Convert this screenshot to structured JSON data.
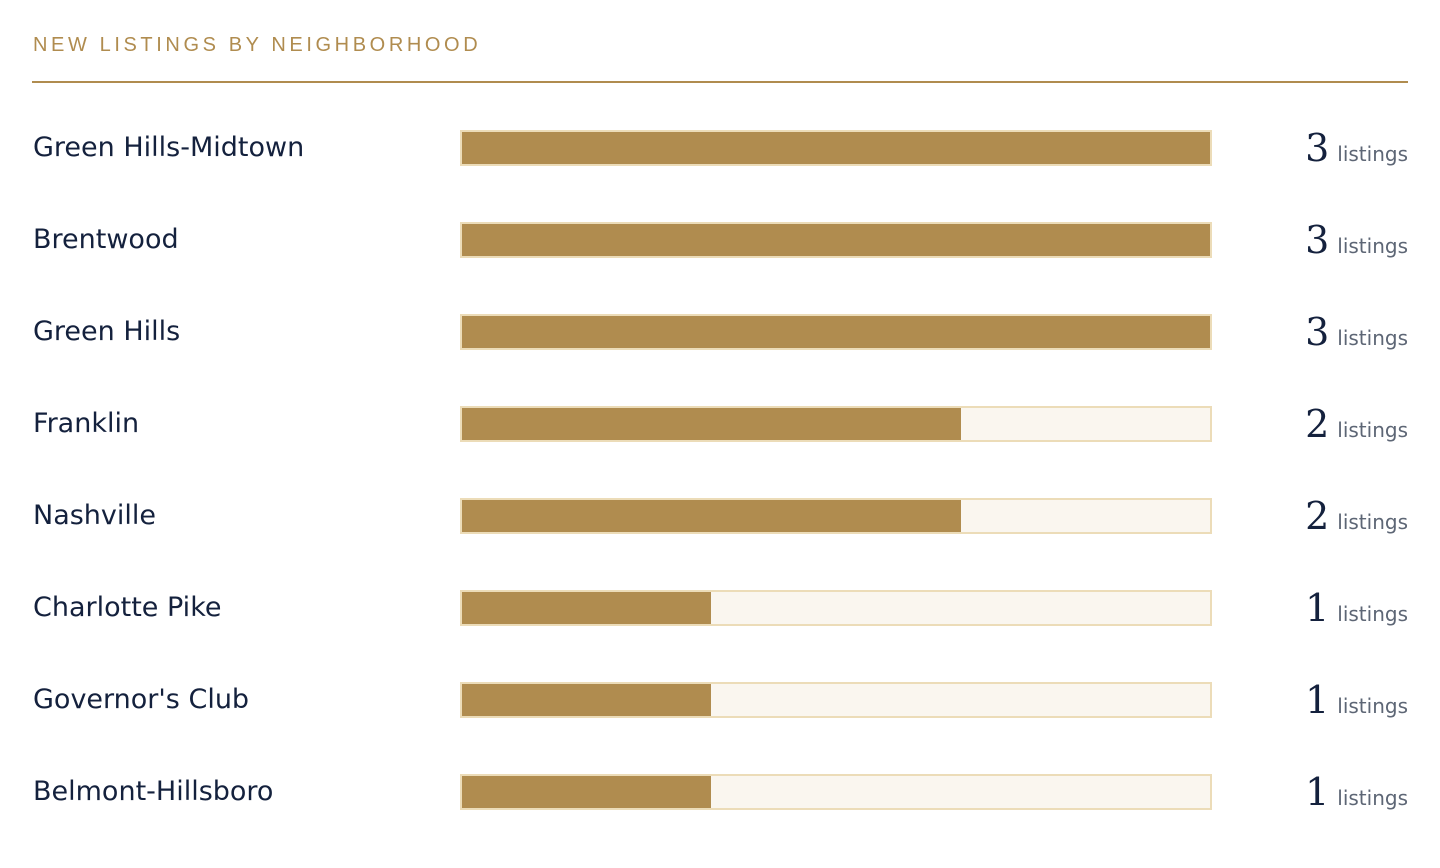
{
  "title": "NEW LISTINGS BY NEIGHBORHOOD",
  "colors": {
    "accent": "#b08c4f",
    "track": "#faf6ef",
    "track_border": "#ecdcb8",
    "text": "#14213d"
  },
  "chart_data": {
    "type": "bar",
    "orientation": "horizontal",
    "title": "NEW LISTINGS BY NEIGHBORHOOD",
    "max": 3,
    "unit_label": "listings",
    "rows": [
      {
        "category": "Green Hills-Midtown",
        "value": 3,
        "unit": "listings"
      },
      {
        "category": "Brentwood",
        "value": 3,
        "unit": "listings"
      },
      {
        "category": "Green Hills",
        "value": 3,
        "unit": "listings"
      },
      {
        "category": "Franklin",
        "value": 2,
        "unit": "listings"
      },
      {
        "category": "Nashville",
        "value": 2,
        "unit": "listings"
      },
      {
        "category": "Charlotte Pike",
        "value": 1,
        "unit": "listings"
      },
      {
        "category": "Governor's Club",
        "value": 1,
        "unit": "listings"
      },
      {
        "category": "Belmont-Hillsboro",
        "value": 1,
        "unit": "listings"
      }
    ]
  }
}
